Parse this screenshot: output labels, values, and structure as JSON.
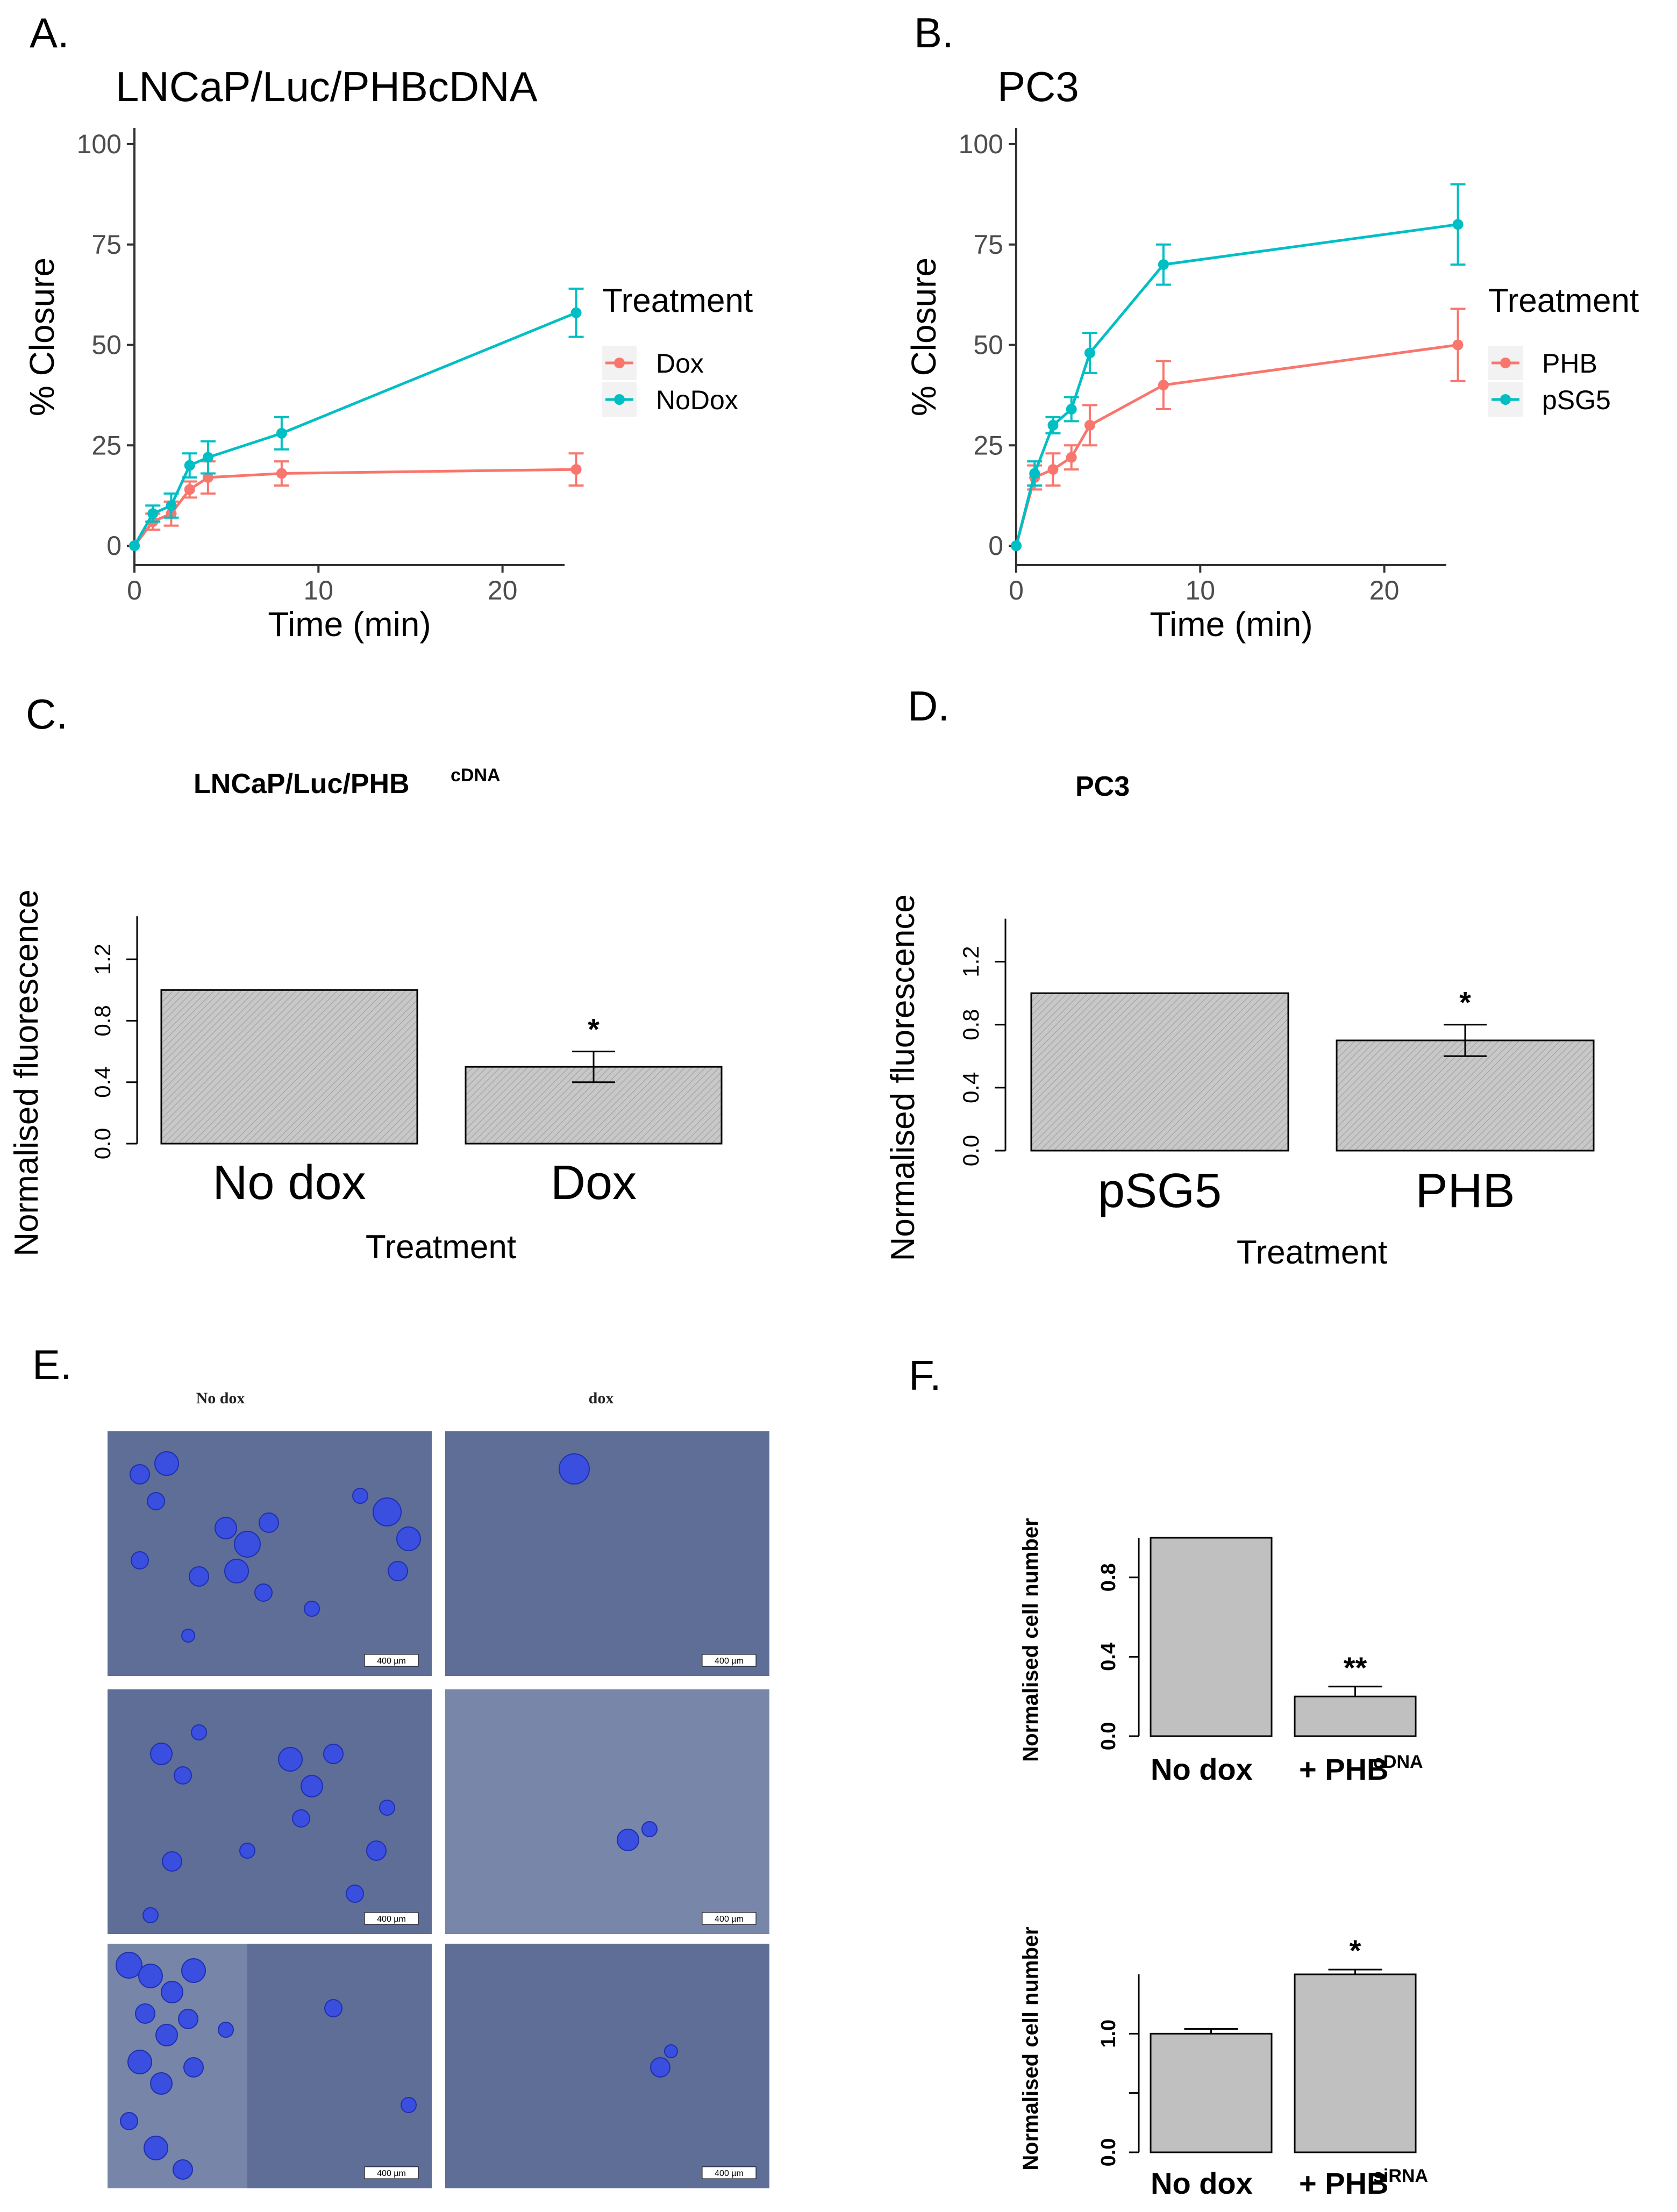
{
  "panels": {
    "A": "A.",
    "B": "B.",
    "C": "C.",
    "D": "D.",
    "E": "E.",
    "F": "F."
  },
  "colors": {
    "salmon": "#F8766D",
    "teal": "#00BFC4",
    "bar_fill": "#C9C9C9",
    "micro_bg": "#5E6E96",
    "cell": "#3A4FE0"
  },
  "panel_e": {
    "col_left": "No dox",
    "col_right": "dox",
    "scale_label": "400 µm"
  },
  "chart_data": [
    {
      "id": "A",
      "type": "line",
      "title": "LNCaP/Luc/PHBcDNA",
      "xlabel": "Time (min)",
      "ylabel": "% Closure",
      "xlim": [
        0,
        26
      ],
      "ylim": [
        0,
        100
      ],
      "xticks": [
        0,
        10,
        20
      ],
      "yticks": [
        0,
        25,
        50,
        75,
        100
      ],
      "legend_title": "Treatment",
      "series": [
        {
          "name": "Dox",
          "color": "#F8766D",
          "x": [
            0,
            1,
            2,
            3,
            4,
            8,
            24
          ],
          "y": [
            0,
            6,
            8,
            14,
            17,
            18,
            19
          ],
          "err": [
            0,
            2,
            3,
            2,
            4,
            3,
            4
          ]
        },
        {
          "name": "NoDox",
          "color": "#00BFC4",
          "x": [
            0,
            1,
            2,
            3,
            4,
            8,
            24
          ],
          "y": [
            0,
            8,
            10,
            20,
            22,
            28,
            58
          ],
          "err": [
            0,
            2,
            3,
            3,
            4,
            4,
            6
          ]
        }
      ]
    },
    {
      "id": "B",
      "type": "line",
      "title": "PC3",
      "xlabel": "Time (min)",
      "ylabel": "% Closure",
      "xlim": [
        0,
        26
      ],
      "ylim": [
        0,
        100
      ],
      "xticks": [
        0,
        10,
        20
      ],
      "yticks": [
        0,
        25,
        50,
        75,
        100
      ],
      "legend_title": "Treatment",
      "series": [
        {
          "name": "PHB",
          "color": "#F8766D",
          "x": [
            0,
            1,
            2,
            3,
            4,
            8,
            24
          ],
          "y": [
            0,
            17,
            19,
            22,
            30,
            40,
            50
          ],
          "err": [
            0,
            3,
            4,
            3,
            5,
            6,
            9
          ]
        },
        {
          "name": "pSG5",
          "color": "#00BFC4",
          "x": [
            0,
            1,
            2,
            3,
            4,
            8,
            24
          ],
          "y": [
            0,
            18,
            30,
            34,
            48,
            70,
            80
          ],
          "err": [
            0,
            3,
            2,
            3,
            5,
            5,
            10
          ]
        }
      ]
    },
    {
      "id": "C",
      "type": "bar",
      "title": "LNCaP/Luc/PHB",
      "title_sup": "cDNA",
      "xlabel": "Treatment",
      "ylabel": "Normalised fluorescence",
      "ylim": [
        0,
        1.4
      ],
      "yticks": [
        "0.0",
        "0.4",
        "0.8",
        "1.2"
      ],
      "categories": [
        "No dox",
        "Dox"
      ],
      "values": [
        1.0,
        0.5
      ],
      "err": [
        null,
        0.1
      ],
      "stars": [
        "",
        "*"
      ]
    },
    {
      "id": "D",
      "type": "bar",
      "title": "PC3",
      "title_sup": "",
      "xlabel": "Treatment",
      "ylabel": "Normalised fluorescence",
      "ylim": [
        0,
        1.4
      ],
      "yticks": [
        "0.0",
        "0.4",
        "0.8",
        "1.2"
      ],
      "categories": [
        "pSG5",
        "PHB"
      ],
      "values": [
        1.0,
        0.7
      ],
      "err": [
        null,
        0.1
      ],
      "stars": [
        "",
        "*"
      ]
    },
    {
      "id": "F1",
      "type": "bar",
      "title": "",
      "xlabel": "",
      "ylabel": "Normalised cell number",
      "ylim": [
        0,
        1.0
      ],
      "yticks": [
        "0.0",
        "0.4",
        "0.8"
      ],
      "categories": [
        "No dox",
        "+ PHB"
      ],
      "category_sup": [
        "",
        "cDNA"
      ],
      "values": [
        1.0,
        0.2
      ],
      "err": [
        null,
        0.05
      ],
      "stars": [
        "",
        "**"
      ]
    },
    {
      "id": "F2",
      "type": "bar",
      "title": "",
      "xlabel": "",
      "ylabel": "Normalised cell number",
      "ylim": [
        0,
        1.5
      ],
      "yticks": [
        "0.0",
        "1.0"
      ],
      "categories": [
        "No dox",
        "+ PHB"
      ],
      "category_sup": [
        "",
        "siRNA"
      ],
      "values": [
        1.0,
        1.5
      ],
      "err": [
        0.04,
        0.04
      ],
      "stars": [
        "",
        "*"
      ]
    }
  ]
}
